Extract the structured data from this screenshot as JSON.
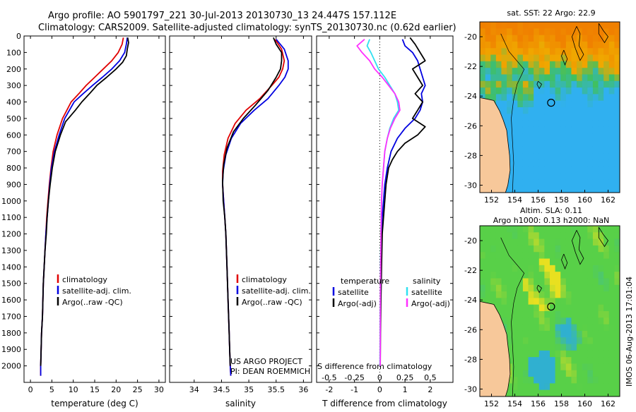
{
  "header": {
    "line1": "Argo profile: AO 5901797_221 30-Jul-2013 20130730_13 24.447S 157.112E",
    "line2": "Climatology: CARS2009. Satellite-adjusted climatology: synTS_20130730.nc (0.62d earlier)"
  },
  "side_note": "IMOS 06-Aug-2013 17:01:04",
  "colors": {
    "climatology": "#e00000",
    "satellite": "#0000e0",
    "argo": "#000000",
    "sal_satellite": "#30e0f0",
    "sal_argo": "#ff30ff",
    "land": "#f7c89a",
    "sst_warm": "#f0a800",
    "sst_mid": "#40c060",
    "sst_cool": "#30b0f0",
    "sla_mid": "#58d048",
    "sla_high": "#e8e020",
    "sla_low": "#30b0d0"
  },
  "chart_data": [
    {
      "id": "temperature",
      "type": "line",
      "xlabel": "temperature (deg C)",
      "ylabel": "",
      "xlim": [
        -1.5,
        31.5
      ],
      "ylim": [
        2100,
        0
      ],
      "xticks": [
        0,
        5,
        10,
        15,
        20,
        25,
        30
      ],
      "yticks": [
        0,
        100,
        200,
        300,
        400,
        500,
        600,
        700,
        800,
        900,
        1000,
        1100,
        1200,
        1300,
        1400,
        1500,
        1600,
        1700,
        1800,
        1900,
        2000
      ],
      "series": [
        {
          "name": "climatology",
          "color": "#e00000",
          "x": [
            21.7,
            21.4,
            20.5,
            19.0,
            17.0,
            15.0,
            13.0,
            11.3,
            9.5,
            7.5,
            6.2,
            5.3,
            4.8,
            4.4,
            4.1,
            3.8,
            3.6,
            3.4,
            3.2,
            3.0,
            2.9,
            2.8,
            2.6,
            2.5,
            2.4,
            2.4
          ],
          "y": [
            10,
            50,
            100,
            150,
            200,
            250,
            300,
            350,
            400,
            500,
            600,
            700,
            800,
            900,
            1000,
            1100,
            1200,
            1300,
            1400,
            1500,
            1600,
            1700,
            1800,
            1900,
            2000,
            2060
          ]
        },
        {
          "name": "satellite-adj. clim.",
          "color": "#0000e0",
          "x": [
            22.6,
            22.4,
            22.0,
            20.8,
            19.0,
            16.8,
            14.5,
            12.3,
            10.2,
            8.0,
            6.7,
            5.6,
            4.9,
            4.5,
            4.2,
            3.9,
            3.6,
            3.4,
            3.2,
            3.0,
            2.9,
            2.8,
            2.6,
            2.5,
            2.4,
            2.4
          ],
          "y": [
            10,
            50,
            100,
            150,
            200,
            250,
            300,
            350,
            400,
            500,
            600,
            700,
            800,
            900,
            1000,
            1100,
            1200,
            1300,
            1400,
            1500,
            1600,
            1700,
            1800,
            1900,
            2000,
            2060
          ]
        },
        {
          "name": "Argo(..raw -QC)",
          "color": "#000000",
          "x": [
            22.7,
            22.9,
            22.6,
            22.4,
            21.5,
            20.0,
            17.8,
            15.5,
            13.8,
            12.0,
            10.5,
            8.2,
            7.0,
            5.8,
            5.1,
            4.6,
            4.2,
            3.9,
            3.7,
            3.4,
            3.2,
            3.0,
            2.9,
            2.8,
            2.6,
            2.5,
            2.4
          ],
          "y": [
            10,
            40,
            80,
            120,
            160,
            200,
            250,
            300,
            350,
            400,
            450,
            520,
            600,
            700,
            800,
            900,
            1000,
            1100,
            1200,
            1300,
            1400,
            1500,
            1600,
            1700,
            1800,
            1900,
            2000
          ]
        }
      ],
      "legend": [
        "climatology",
        "satellite-adj. clim.",
        "Argo(..raw -QC)"
      ]
    },
    {
      "id": "salinity",
      "type": "line",
      "xlabel": "salinity",
      "ylabel": "",
      "xlim": [
        33.55,
        36.15
      ],
      "ylim": [
        2100,
        0
      ],
      "xticks": [
        34,
        34.5,
        35,
        35.5,
        36
      ],
      "series": [
        {
          "name": "climatology",
          "color": "#e00000",
          "x": [
            35.48,
            35.6,
            35.65,
            35.62,
            35.55,
            35.42,
            35.2,
            34.95,
            34.75,
            34.62,
            34.55,
            34.52,
            34.52,
            34.54,
            34.56,
            34.58,
            34.6,
            34.62,
            34.64,
            34.65,
            34.66,
            34.67
          ],
          "y": [
            20,
            80,
            150,
            200,
            250,
            300,
            380,
            450,
            530,
            620,
            720,
            820,
            900,
            1000,
            1100,
            1200,
            1400,
            1600,
            1800,
            1900,
            2000,
            2060
          ]
        },
        {
          "name": "satellite-adj. clim.",
          "color": "#0000e0",
          "x": [
            35.5,
            35.65,
            35.72,
            35.72,
            35.66,
            35.55,
            35.35,
            35.1,
            34.85,
            34.68,
            34.58,
            34.53,
            34.52,
            34.54,
            34.56,
            34.58,
            34.6,
            34.62,
            34.64,
            34.65,
            34.66,
            34.67
          ],
          "y": [
            20,
            80,
            150,
            200,
            250,
            300,
            380,
            450,
            530,
            620,
            720,
            820,
            900,
            1000,
            1100,
            1200,
            1400,
            1600,
            1800,
            1900,
            2000,
            2060
          ]
        },
        {
          "name": "Argo(..raw -QC)",
          "color": "#000000",
          "x": [
            35.45,
            35.5,
            35.6,
            35.6,
            35.58,
            35.5,
            35.35,
            35.12,
            34.9,
            34.72,
            34.6,
            34.54,
            34.52,
            34.53,
            34.56,
            34.58,
            34.6,
            34.62,
            34.64,
            34.65,
            34.66
          ],
          "y": [
            10,
            50,
            100,
            150,
            200,
            250,
            330,
            420,
            500,
            580,
            680,
            780,
            880,
            1000,
            1100,
            1200,
            1400,
            1600,
            1800,
            1900,
            2000
          ]
        }
      ],
      "legend": [
        "climatology",
        "satellite-adj. clim.",
        "Argo(..raw -QC)"
      ],
      "annotation": [
        "US ARGO PROJECT",
        "PI: DEAN ROEMMICH"
      ]
    },
    {
      "id": "differences",
      "type": "line",
      "xlabel": "T difference from climatology",
      "secondary_xlabel": "S difference from climatology",
      "xlim": [
        -2.5,
        2.9
      ],
      "ylim": [
        2100,
        0
      ],
      "xticks": [
        -2,
        -1,
        0,
        1,
        2
      ],
      "secondary_ticks": [
        {
          "label": "-0.5",
          "x": -2
        },
        {
          "label": "-0.25",
          "x": -1
        },
        {
          "label": "0",
          "x": 0
        },
        {
          "label": "0.25",
          "x": 1
        },
        {
          "label": "0.5",
          "x": 2
        }
      ],
      "series": [
        {
          "name": "temperature satellite",
          "color": "#0000e0",
          "x": [
            0.9,
            1.0,
            1.3,
            1.5,
            1.6,
            1.7,
            1.8,
            1.65,
            1.7,
            1.6,
            1.4,
            1.0,
            0.7,
            0.45,
            0.3,
            0.2,
            0.15,
            0.1,
            0.08,
            0.05,
            0.04,
            0.03,
            0.02,
            0.02
          ],
          "y": [
            20,
            60,
            100,
            150,
            200,
            250,
            300,
            350,
            400,
            450,
            500,
            560,
            620,
            700,
            800,
            900,
            1000,
            1100,
            1200,
            1300,
            1400,
            1600,
            1800,
            2000
          ]
        },
        {
          "name": "temperature Argo(-adj)",
          "color": "#000000",
          "x": [
            1.2,
            1.4,
            1.6,
            1.8,
            1.3,
            1.5,
            1.7,
            1.4,
            1.7,
            1.5,
            1.3,
            1.8,
            1.5,
            1.0,
            0.7,
            0.5,
            0.35,
            0.25,
            0.2,
            0.15,
            0.1,
            0.07,
            0.05,
            0.03,
            0.02
          ],
          "y": [
            10,
            50,
            100,
            150,
            200,
            250,
            300,
            350,
            400,
            450,
            500,
            550,
            600,
            650,
            700,
            750,
            800,
            900,
            1000,
            1100,
            1200,
            1400,
            1600,
            1800,
            2000
          ]
        },
        {
          "name": "salinity satellite",
          "color": "#30e0f0",
          "x": [
            -0.4,
            -0.5,
            -0.35,
            -0.2,
            -0.05,
            0.2,
            0.4,
            0.6,
            0.7,
            0.75,
            0.55,
            0.4,
            0.3,
            0.2,
            0.15,
            0.1,
            0.07,
            0.05,
            0.03,
            0.02,
            0.01
          ],
          "y": [
            20,
            60,
            100,
            150,
            200,
            250,
            300,
            350,
            400,
            450,
            500,
            560,
            620,
            700,
            800,
            900,
            1000,
            1200,
            1400,
            1700,
            2000
          ]
        },
        {
          "name": "salinity Argo(-adj)",
          "color": "#ff30ff",
          "x": [
            -0.6,
            -0.9,
            -0.7,
            -0.4,
            -0.2,
            0.1,
            0.35,
            0.6,
            0.75,
            0.8,
            0.6,
            0.42,
            0.3,
            0.2,
            0.15,
            0.1,
            0.07,
            0.05,
            0.03,
            0.02
          ],
          "y": [
            20,
            60,
            100,
            150,
            200,
            250,
            300,
            350,
            400,
            450,
            500,
            560,
            620,
            700,
            800,
            900,
            1000,
            1200,
            1500,
            2000
          ]
        }
      ],
      "legend_headers": [
        "temperature",
        "salinity"
      ],
      "legend": [
        "satellite",
        "Argo(-adj)",
        "satellite",
        "Argo(-adj)"
      ]
    },
    {
      "id": "sst-map",
      "type": "heatmap",
      "title": "sat. SST: 22 Argo: 22.9",
      "xlim": [
        151,
        163
      ],
      "ylim": [
        -30.5,
        -19
      ],
      "xticks": [
        152,
        154,
        156,
        158,
        160,
        162
      ],
      "yticks": [
        -20,
        -22,
        -24,
        -26,
        -28,
        -30
      ],
      "float_position": {
        "lon": 157.112,
        "lat": -24.447
      }
    },
    {
      "id": "sla-map",
      "type": "heatmap",
      "title": "Altim. SLA: 0.11",
      "subtitle": "Argo h1000: 0.13 h2000: NaN",
      "xlim": [
        151,
        163
      ],
      "ylim": [
        -30.5,
        -19
      ],
      "xticks": [
        152,
        154,
        156,
        158,
        160,
        162
      ],
      "yticks": [
        -20,
        -22,
        -24,
        -26,
        -28,
        -30
      ],
      "float_position": {
        "lon": 157.112,
        "lat": -24.447
      }
    }
  ]
}
